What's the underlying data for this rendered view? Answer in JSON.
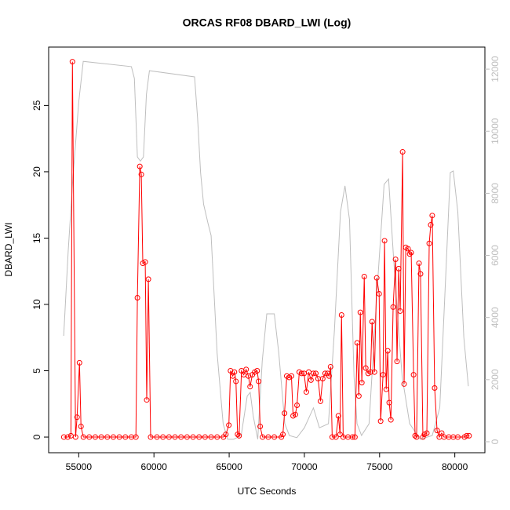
{
  "chart_data": {
    "type": "line",
    "title": "ORCAS RF08 DBARD_LWI (Log)",
    "x_label": "UTC Seconds",
    "y_label": "DBARD_LWI",
    "xlim": [
      53000,
      82000
    ],
    "xticks": [
      55000,
      60000,
      65000,
      70000,
      75000,
      80000
    ],
    "ylim": [
      -1.18,
      29.4
    ],
    "yticks": [
      0,
      5,
      10,
      15,
      20,
      25
    ],
    "y2lim": [
      -354,
      12710
    ],
    "y2ticks": [
      0,
      2000,
      4000,
      6000,
      8000,
      10000,
      12000
    ],
    "series": [
      {
        "color": "#ff0000",
        "markers": true,
        "x": [
          54010,
          54270,
          54480,
          54580,
          54790,
          54890,
          55050,
          55150,
          55310,
          55700,
          56100,
          56500,
          56900,
          57300,
          57700,
          58100,
          58500,
          58800,
          58900,
          59060,
          59160,
          59260,
          59420,
          59520,
          59630,
          59780,
          60200,
          60600,
          61000,
          61400,
          61800,
          62200,
          62600,
          63000,
          63400,
          63800,
          64200,
          64620,
          64780,
          64980,
          65090,
          65240,
          65350,
          65450,
          65560,
          65660,
          65820,
          65970,
          66130,
          66280,
          66390,
          66540,
          66700,
          66860,
          66960,
          67060,
          67220,
          67600,
          68000,
          68470,
          68570,
          68680,
          68830,
          68990,
          69140,
          69250,
          69400,
          69510,
          69660,
          69820,
          69980,
          70130,
          70290,
          70440,
          70600,
          70760,
          70910,
          71070,
          71220,
          71380,
          71540,
          71640,
          71740,
          71850,
          72100,
          72260,
          72370,
          72470,
          72580,
          72900,
          73200,
          73360,
          73510,
          73620,
          73720,
          73820,
          73980,
          74080,
          74240,
          74400,
          74500,
          74660,
          74810,
          74970,
          75070,
          75230,
          75330,
          75440,
          75540,
          75640,
          75750,
          75900,
          76060,
          76160,
          76270,
          76370,
          76530,
          76630,
          76740,
          76890,
          77000,
          77100,
          77260,
          77360,
          77460,
          77620,
          77720,
          77880,
          77980,
          78140,
          78300,
          78400,
          78500,
          78660,
          78820,
          78970,
          79130,
          79280,
          79600,
          79900,
          80200,
          80640,
          80790,
          80950
        ],
        "values": [
          0,
          0,
          0.1,
          28.3,
          0,
          1.5,
          5.6,
          0.8,
          0,
          0,
          0,
          0,
          0,
          0,
          0,
          0,
          0,
          0,
          10.5,
          20.4,
          19.8,
          13.1,
          13.2,
          2.8,
          11.9,
          0,
          0,
          0,
          0,
          0,
          0,
          0,
          0,
          0,
          0,
          0,
          0,
          0,
          0.2,
          0.9,
          5.0,
          4.6,
          4.9,
          4.2,
          0.2,
          0.1,
          5.0,
          4.7,
          5.1,
          4.6,
          3.8,
          4.7,
          4.9,
          5.0,
          4.2,
          0.8,
          0,
          0,
          0,
          0,
          0.2,
          1.8,
          4.6,
          4.5,
          4.6,
          1.6,
          1.7,
          2.4,
          4.9,
          4.8,
          4.8,
          3.4,
          4.9,
          4.3,
          4.8,
          4.8,
          4.4,
          2.7,
          4.4,
          4.8,
          4.8,
          4.6,
          5.3,
          0,
          0,
          1.6,
          0.2,
          9.2,
          0,
          0,
          0,
          0,
          7.1,
          3.1,
          9.4,
          4.1,
          12.1,
          5.2,
          4.8,
          4.9,
          8.7,
          4.9,
          12.0,
          10.8,
          1.2,
          4.7,
          14.8,
          3.6,
          6.5,
          2.6,
          1.3,
          9.8,
          13.4,
          5.7,
          12.7,
          9.5,
          21.5,
          4.0,
          14.3,
          14.2,
          13.8,
          13.9,
          4.7,
          0.1,
          0,
          13.1,
          12.3,
          0,
          0.2,
          0.3,
          14.6,
          16.0,
          16.7,
          3.7,
          0.5,
          0,
          0.3,
          0,
          0,
          0,
          0,
          0,
          0.1,
          0.1
        ]
      },
      {
        "color": "#bebebe",
        "axis": "y2",
        "markers": false,
        "x": [
          54000,
          54300,
          54600,
          55000,
          55300,
          58500,
          58700,
          58900,
          59100,
          59300,
          59500,
          59700,
          62700,
          62900,
          63100,
          63300,
          63600,
          63800,
          64200,
          64600,
          64900,
          65300,
          65800,
          66200,
          66400,
          66600,
          66900,
          67200,
          67500,
          68000,
          68300,
          68700,
          69000,
          69500,
          70000,
          70600,
          71000,
          71600,
          72000,
          72400,
          72700,
          73000,
          73300,
          73500,
          73800,
          74300,
          74800,
          75300,
          75600,
          75900,
          76300,
          76500,
          77000,
          77700,
          78500,
          79000,
          79400,
          79700,
          79900,
          80200,
          80600,
          80900
        ],
        "values": [
          3410,
          6140,
          8410,
          10940,
          12250,
          12080,
          11700,
          9170,
          9040,
          9170,
          11190,
          11950,
          11750,
          10430,
          8670,
          7650,
          7020,
          6640,
          2850,
          580,
          80,
          80,
          200,
          1470,
          1590,
          830,
          80,
          2600,
          4120,
          4120,
          2850,
          580,
          200,
          130,
          450,
          1090,
          450,
          580,
          3610,
          7400,
          8240,
          7150,
          2100,
          580,
          200,
          580,
          4620,
          8290,
          8460,
          6140,
          3360,
          2100,
          580,
          80,
          200,
          1090,
          5380,
          8670,
          8720,
          7400,
          3360,
          1790
        ]
      }
    ]
  }
}
